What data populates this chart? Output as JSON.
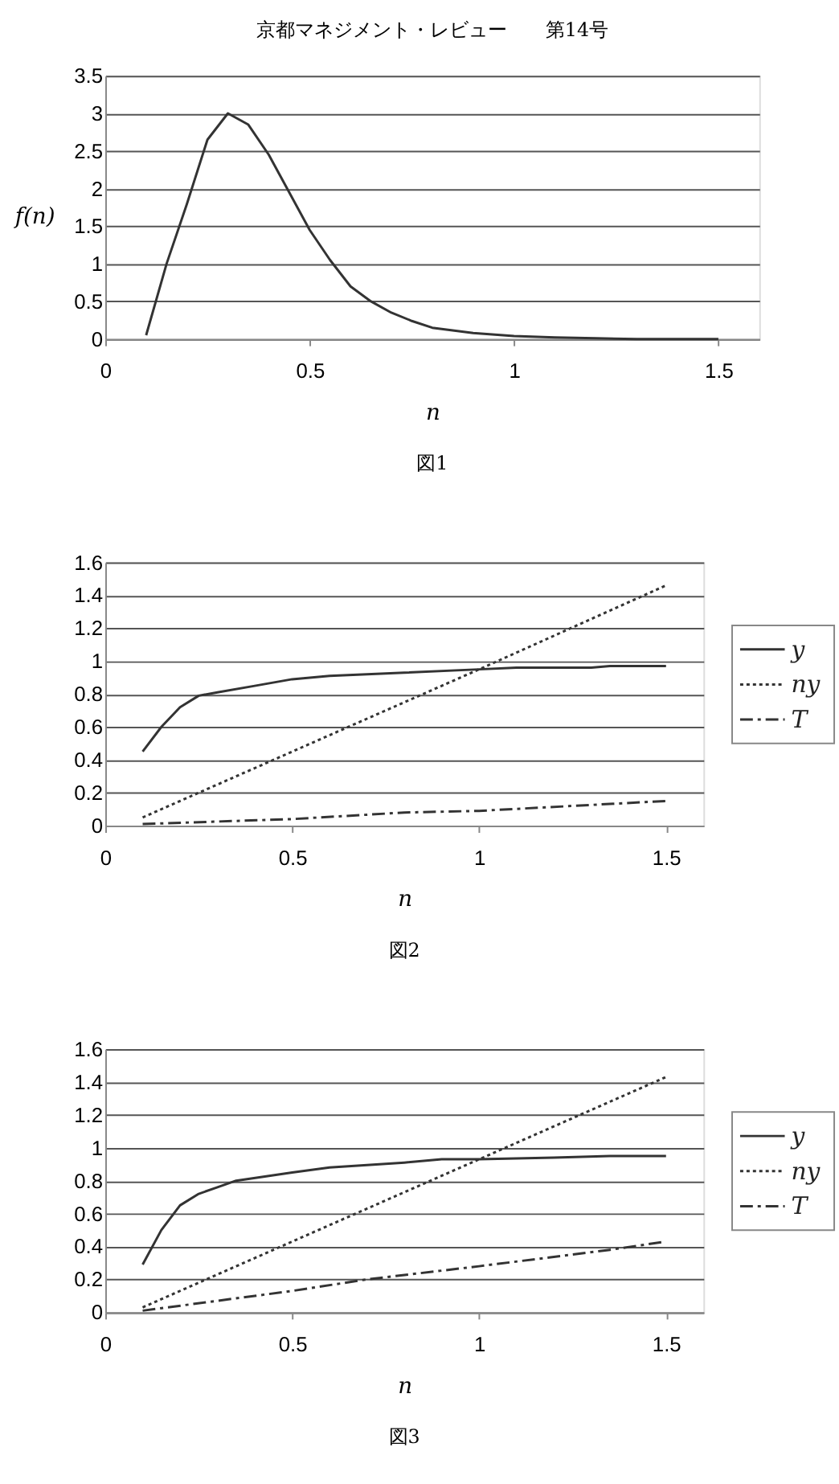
{
  "chart_data": [
    {
      "type": "line",
      "title": "京都マネジメント・レビュー　　第14号",
      "xlabel": "n",
      "ylabel": "f(n)",
      "annotations": [
        "図1"
      ],
      "x": [
        0.1,
        0.15,
        0.2,
        0.25,
        0.3,
        0.35,
        0.4,
        0.45,
        0.5,
        0.55,
        0.6,
        0.65,
        0.7,
        0.75,
        0.8,
        0.9,
        1.0,
        1.1,
        1.2,
        1.3,
        1.5
      ],
      "series": [
        {
          "color": "#333333",
          "values": [
            0.05,
            1.0,
            1.8,
            2.65,
            3.0,
            2.85,
            2.45,
            1.95,
            1.45,
            1.05,
            0.7,
            0.5,
            0.35,
            0.24,
            0.15,
            0.08,
            0.04,
            0.02,
            0.01,
            0,
            0
          ],
          "line_style": "solid"
        }
      ],
      "xlim": [
        0,
        1.6
      ],
      "xticks": [
        0,
        0.5,
        1,
        1.5
      ],
      "ylim": [
        0,
        3.5
      ],
      "yticks": [
        0,
        0.5,
        1,
        1.5,
        2,
        2.5,
        3,
        3.5
      ],
      "grid": "y",
      "legend": false,
      "marker": "none"
    },
    {
      "type": "line",
      "xlabel": "n",
      "annotations": [
        "図2"
      ],
      "series": [
        {
          "name": "y",
          "color": "#333333",
          "line_style": "solid",
          "x": [
            0.1,
            0.15,
            0.2,
            0.25,
            0.3,
            0.4,
            0.5,
            0.6,
            0.8,
            1.0,
            1.1,
            1.3,
            1.35,
            1.5
          ],
          "values": [
            0.45,
            0.6,
            0.72,
            0.79,
            0.81,
            0.85,
            0.89,
            0.91,
            0.93,
            0.95,
            0.96,
            0.96,
            0.97,
            0.97
          ]
        },
        {
          "name": "ny",
          "color": "#333333",
          "line_style": "dotted",
          "x": [
            0.1,
            0.5,
            1.0,
            1.5
          ],
          "values": [
            0.05,
            0.45,
            0.95,
            1.46
          ]
        },
        {
          "name": "T",
          "color": "#333333",
          "line_style": "dashed",
          "x": [
            0.1,
            0.5,
            0.8,
            1.0,
            1.5
          ],
          "values": [
            0.01,
            0.04,
            0.08,
            0.09,
            0.15
          ]
        }
      ],
      "xlim": [
        0,
        1.6
      ],
      "xticks": [
        0,
        0.5,
        1,
        1.5
      ],
      "ylim": [
        0,
        1.6
      ],
      "yticks": [
        0,
        0.2,
        0.4,
        0.6,
        0.8,
        1,
        1.2,
        1.4,
        1.6
      ],
      "grid": "y",
      "legend": "right",
      "marker": "none"
    },
    {
      "type": "line",
      "xlabel": "n",
      "annotations": [
        "図3"
      ],
      "series": [
        {
          "name": "y",
          "color": "#333333",
          "line_style": "solid",
          "x": [
            0.1,
            0.15,
            0.2,
            0.25,
            0.3,
            0.35,
            0.5,
            0.6,
            0.8,
            0.9,
            1.0,
            1.2,
            1.35,
            1.5
          ],
          "values": [
            0.29,
            0.5,
            0.65,
            0.72,
            0.76,
            0.8,
            0.85,
            0.88,
            0.91,
            0.93,
            0.93,
            0.94,
            0.95,
            0.95
          ]
        },
        {
          "name": "ny",
          "color": "#333333",
          "line_style": "dotted",
          "x": [
            0.1,
            0.5,
            1.0,
            1.5
          ],
          "values": [
            0.03,
            0.43,
            0.93,
            1.43
          ]
        },
        {
          "name": "T",
          "color": "#333333",
          "line_style": "dashed",
          "x": [
            0.1,
            0.5,
            0.7,
            1.0,
            1.35,
            1.5
          ],
          "values": [
            0.01,
            0.13,
            0.2,
            0.28,
            0.38,
            0.43
          ]
        }
      ],
      "xlim": [
        0,
        1.6
      ],
      "xticks": [
        0,
        0.5,
        1,
        1.5
      ],
      "ylim": [
        0,
        1.6
      ],
      "yticks": [
        0,
        0.2,
        0.4,
        0.6,
        0.8,
        1,
        1.2,
        1.4,
        1.6
      ],
      "grid": "y",
      "legend": "right",
      "marker": "none"
    }
  ]
}
